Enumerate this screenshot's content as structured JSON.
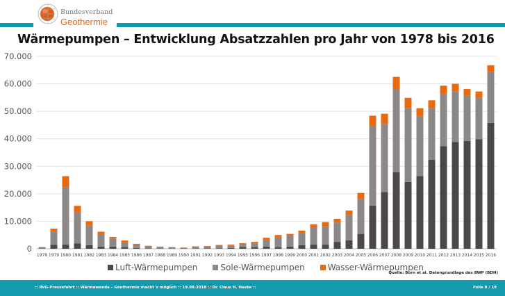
{
  "header": {
    "logo_line1": "Bundesverband",
    "logo_line2": "Geothermie",
    "title": "Wärmepumpen – Entwicklung Absatzzahlen pro Jahr von 1978 bis 2016"
  },
  "chart_data": {
    "type": "bar",
    "stacked": true,
    "title": "Wärmepumpen – Entwicklung Absatzzahlen pro Jahr von 1978 bis 2016",
    "xlabel": "",
    "ylabel": "",
    "ylim": [
      0,
      70000
    ],
    "yticks": [
      0,
      10000,
      20000,
      30000,
      40000,
      50000,
      60000,
      70000
    ],
    "ytick_labels": [
      "0",
      "10.000",
      "20.000",
      "30.000",
      "40.000",
      "50.000",
      "60.000",
      "70.000"
    ],
    "grid": true,
    "legend_position": "bottom",
    "categories": [
      "1978",
      "1979",
      "1980",
      "1981",
      "1982",
      "1983",
      "1984",
      "1985",
      "1986",
      "1987",
      "1988",
      "1989",
      "1990",
      "1991",
      "1992",
      "1993",
      "1994",
      "1995",
      "1996",
      "1997",
      "1998",
      "1999",
      "2000",
      "2001",
      "2002",
      "2003",
      "2004",
      "2005",
      "2006",
      "2007",
      "2008",
      "2009",
      "2010",
      "2011",
      "2012",
      "2013",
      "2014",
      "2015",
      "2016"
    ],
    "series": [
      {
        "name": "Luft-Wärmepumpen",
        "color": "#4d4848",
        "values": [
          100,
          1400,
          1500,
          1900,
          1300,
          800,
          800,
          500,
          300,
          100,
          100,
          100,
          100,
          100,
          150,
          200,
          300,
          600,
          500,
          800,
          500,
          800,
          1300,
          1500,
          1500,
          2500,
          3100,
          5400,
          15700,
          20600,
          27800,
          24300,
          26400,
          32400,
          37300,
          38800,
          39200,
          39800,
          45800
        ]
      },
      {
        "name": "Sole-Wärmepumpen",
        "color": "#8c8888",
        "values": [
          500,
          4700,
          20900,
          11400,
          7100,
          4500,
          2900,
          1800,
          1100,
          800,
          600,
          400,
          250,
          700,
          700,
          1100,
          800,
          900,
          1500,
          2400,
          3700,
          3900,
          4500,
          6100,
          6500,
          7000,
          9200,
          12700,
          28800,
          24800,
          30200,
          26800,
          21900,
          18800,
          19100,
          18500,
          16600,
          15100,
          18600
        ]
      },
      {
        "name": "Wasser-Wärmepumpen",
        "color": "#e8690f",
        "values": [
          0,
          1200,
          4000,
          2300,
          1600,
          900,
          600,
          700,
          400,
          200,
          100,
          100,
          100,
          100,
          150,
          100,
          400,
          500,
          500,
          800,
          800,
          700,
          800,
          1300,
          1700,
          1400,
          1600,
          2200,
          3900,
          3700,
          4500,
          3800,
          2800,
          2800,
          2900,
          2700,
          2300,
          2300,
          2300
        ]
      }
    ]
  },
  "source": "Quelle: Born et al. Datengrundlage des BWP (BDH)",
  "footer": {
    "text": ":: BVG-Pressefahrt :: Wärmewende – Geothermie macht´s möglich :: 19.09.2018 :: Dr. Claus H. Heske ::",
    "page": "Folie 8 / 19"
  },
  "colors": {
    "teal": "#139aac",
    "orange": "#e8690f"
  }
}
